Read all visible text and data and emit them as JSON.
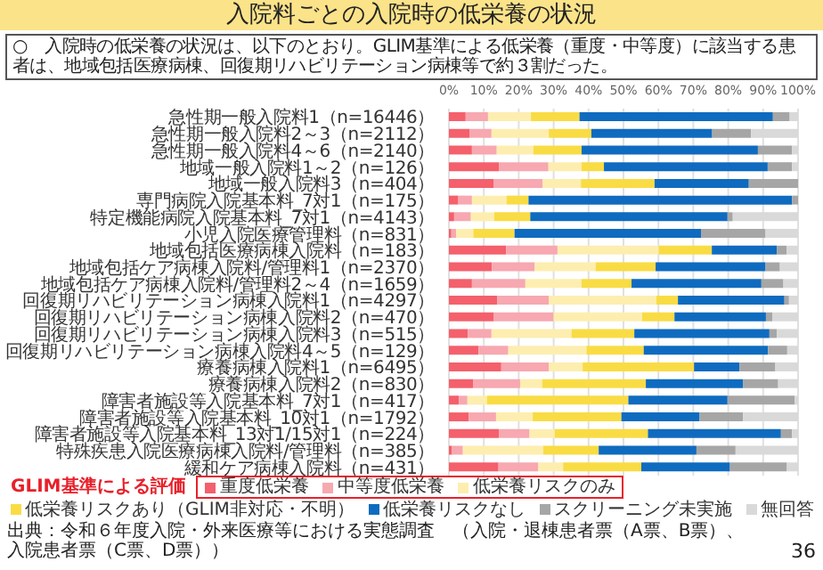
{
  "chart_data": {
    "type": "bar",
    "orientation": "horizontal",
    "stacked": true,
    "title": "入院料ごとの入院時の低栄養の状況",
    "subtitle": "○　入院時の低栄養の状況は、以下のとおり。GLIM基準による低栄養（重度・中等度）に該当する患者は、地域包括医療病棟、回復期リハビリテーション病棟等で約３割だった。",
    "categories": [
      "急性期一般入院料1（n=16446）",
      "急性期一般入院料2～3（n=2112）",
      "急性期一般入院料4～6（n=2140）",
      "地域一般入院料1～2（n=126）",
      "地域一般入院料3（n=404）",
      "専門病院入院基本料_7対1（n=175）",
      "特定機能病院入院基本料_7対1（n=4143）",
      "小児入院医療管理料（n=831）",
      "地域包括医療病棟入院料（n=183）",
      "地域包括ケア病棟入院料/管理料1（n=2370）",
      "地域包括ケア病棟入院料/管理料2～4（n=1659）",
      "回復期リハビリテーション病棟入院料1（n=4297）",
      "回復期リハビリテーション病棟入院料2（n=470）",
      "回復期リハビリテーション病棟入院料3（n=515）",
      "回復期リハビリテーション病棟入院料4～5（n=129）",
      "療養病棟入院料1（n=6495）",
      "療養病棟入院料2（n=830）",
      "障害者施設等入院基本料_7対1（n=417）",
      "障害者施設等入院基本料_10対1（n=1792）",
      "障害者施設等入院基本料_13対1/15対1（n=224）",
      "特殊疾患入院医療病棟入院料/管理料（n=385）",
      "緩和ケア病棟入院料（n=431）"
    ],
    "series": [
      {
        "name": "重度低栄養",
        "color": "#f4606c",
        "values": [
          4.8,
          6.0,
          6.6,
          14.3,
          12.9,
          2.7,
          1.5,
          0.7,
          16.4,
          12.3,
          6.6,
          13.8,
          12.9,
          5.4,
          8.5,
          15.0,
          6.9,
          2.9,
          5.7,
          14.3,
          0.9,
          14.2
        ]
      },
      {
        "name": "中等度低栄養",
        "color": "#f7a8b0",
        "values": [
          6.4,
          6.2,
          7.1,
          14.2,
          14.0,
          3.9,
          4.8,
          1.4,
          14.7,
          12.3,
          15.3,
          14.8,
          17.1,
          6.8,
          8.5,
          13.6,
          13.5,
          2.4,
          7.8,
          8.8,
          3.1,
          11.4
        ]
      },
      {
        "name": "低栄養リスクのみ",
        "color": "#fdeeb0",
        "values": [
          12.3,
          16.4,
          10.5,
          9.5,
          10.9,
          9.9,
          6.7,
          4.9,
          29.0,
          17.4,
          16.1,
          30.8,
          25.3,
          22.9,
          22.4,
          9.7,
          6.3,
          5.6,
          10.5,
          7.2,
          23.0,
          7.1
        ]
      },
      {
        "name": "低栄養リスクあり（GLIM非対応・不明）",
        "color": "#f9dc44",
        "values": [
          13.9,
          12.2,
          13.8,
          6.4,
          21.1,
          6.3,
          10.3,
          11.8,
          15.2,
          17.2,
          14.3,
          6.2,
          9.3,
          18.0,
          16.4,
          31.9,
          29.7,
          40.5,
          25.4,
          26.7,
          15.9,
          22.4
        ]
      },
      {
        "name": "低栄養リスクなし",
        "color": "#0f6bbf",
        "values": [
          55.4,
          34.6,
          50.5,
          46.9,
          27.0,
          75.5,
          56.5,
          53.4,
          18.6,
          31.5,
          37.2,
          30.5,
          26.2,
          38.7,
          35.6,
          13.0,
          27.8,
          28.4,
          22.4,
          38.1,
          28.0,
          25.4
        ]
      },
      {
        "name": "スクリーニング未実施",
        "color": "#a6a6a6",
        "values": [
          4.8,
          11.1,
          9.8,
          7.0,
          14.1,
          1.7,
          1.5,
          18.5,
          2.8,
          4.1,
          6.3,
          1.3,
          1.8,
          2.1,
          5.5,
          10.3,
          10.1,
          19.2,
          12.4,
          3.2,
          11.2,
          16.3
        ]
      },
      {
        "name": "無回答",
        "color": "#d9d9d9",
        "values": [
          2.4,
          13.5,
          1.7,
          1.7,
          0.0,
          0.0,
          18.7,
          9.3,
          3.3,
          5.2,
          4.2,
          2.6,
          7.4,
          6.1,
          3.1,
          6.5,
          5.7,
          1.0,
          15.8,
          1.7,
          17.9,
          3.2
        ]
      }
    ],
    "xlim": [
      0,
      100
    ],
    "xticks": [
      {
        "value": 0,
        "label": "0%"
      },
      {
        "value": 10,
        "label": "10%"
      },
      {
        "value": 20,
        "label": "20%"
      },
      {
        "value": 30,
        "label": "30%"
      },
      {
        "value": 40,
        "label": "40%"
      },
      {
        "value": 50,
        "label": "50%"
      },
      {
        "value": 60,
        "label": "60%"
      },
      {
        "value": 70,
        "label": "70%"
      },
      {
        "value": 80,
        "label": "80%"
      },
      {
        "value": 90,
        "label": "90%"
      },
      {
        "value": 100,
        "label": "100%"
      }
    ],
    "grid": "x",
    "legend": "bottom",
    "legend_title": "GLIM基準による評価",
    "annotations": [
      "出典：令和６年度入院・外来医療等における実態調査　（入院・退棟患者票（A票、B票）、入院患者票（C票、D票））",
      "36"
    ]
  }
}
